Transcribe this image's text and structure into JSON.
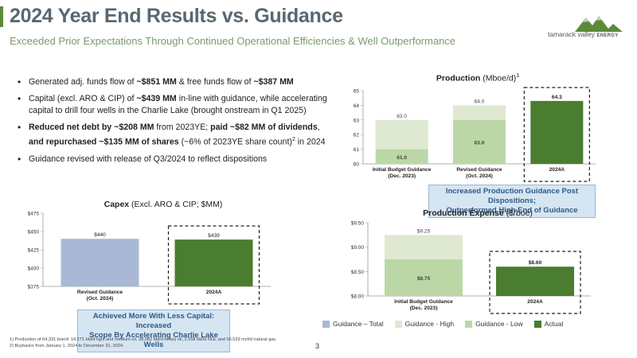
{
  "header": {
    "title": "2024 Year End Results vs. Guidance",
    "subtitle": "Exceeded Prior Expectations Through Continued Operational Efficiencies & Well Outperformance",
    "logo_text": "tamarack valley",
    "logo_text_small": "ENERGY"
  },
  "bullets": [
    {
      "parts": [
        {
          "t": "Generated adj. funds flow of ",
          "b": false
        },
        {
          "t": "~$851 MM",
          "b": true
        },
        {
          "t": " & free funds flow of ",
          "b": false
        },
        {
          "t": "~$387 MM",
          "b": true
        }
      ]
    },
    {
      "parts": [
        {
          "t": "Capital (excl. ARO & CIP) of ",
          "b": false
        },
        {
          "t": "~$439 MM",
          "b": true
        },
        {
          "t": " in-line with guidance, while accelerating capital to drill four wells in the Charlie Lake (brought onstream in Q1 2025)",
          "b": false
        }
      ]
    },
    {
      "parts": [
        {
          "t": "Reduced net debt by ~$208 MM",
          "b": true
        },
        {
          "t": " from 2023YE; ",
          "b": false
        },
        {
          "t": "paid ~$82 MM of dividends",
          "b": true
        },
        {
          "t": ", ",
          "b": false
        },
        {
          "t": "and repurchased ~$135 MM of shares",
          "b": true
        },
        {
          "t": " (~6% of 2023YE share count)",
          "b": false
        },
        {
          "t": "2",
          "sup": true
        },
        {
          "t": " in 2024",
          "b": false
        }
      ]
    },
    {
      "parts": [
        {
          "t": "Guidance revised with release of Q3/2024 to reflect dispositions",
          "b": false
        }
      ]
    }
  ],
  "capex": {
    "title_bold": "Capex",
    "title_rest": " (Excl. ARO & CIP; $MM)",
    "callout": [
      "Achieved More With Less Capital: Increased",
      "Scope By Accelerating Charlie Lake Wells"
    ]
  },
  "production": {
    "title_bold": "Production",
    "title_rest": " (Mboe/d)",
    "title_sup": "1",
    "callout": [
      "Increased Production Guidance Post Dispositions;",
      "Outperformed High End of Guidance"
    ]
  },
  "prodexp": {
    "title_bold": "Production Expense",
    "title_rest": " ($/boe)"
  },
  "chart_data": [
    {
      "id": "capex",
      "type": "bar",
      "categories": [
        [
          "Revised Guidance",
          "(Oct. 2024)"
        ],
        [
          "2024A"
        ]
      ],
      "values": [
        440,
        439
      ],
      "value_labels": [
        "$440",
        "$439"
      ],
      "series_kind": [
        "total",
        "actual"
      ],
      "ylim": [
        375,
        475
      ],
      "yticks": [
        375,
        400,
        425,
        450,
        475
      ],
      "ytick_labels": [
        "$375",
        "$400",
        "$425",
        "$450",
        "$475"
      ],
      "highlight_index": 1
    },
    {
      "id": "production",
      "type": "bar",
      "categories": [
        [
          "Initial Budget Guidance",
          "(Dec. 2023)"
        ],
        [
          "Revised Guidance",
          "(Oct. 2024)"
        ],
        [
          "2024A"
        ]
      ],
      "low": [
        61.0,
        63.0,
        null
      ],
      "high": [
        63.0,
        64.0,
        null
      ],
      "low_labels": [
        "61.0",
        "63.0",
        null
      ],
      "high_labels": [
        "63.0",
        "64.0",
        null
      ],
      "actual": [
        null,
        null,
        64.3
      ],
      "actual_labels": [
        null,
        null,
        "64.3"
      ],
      "ylim": [
        60,
        65
      ],
      "yticks": [
        60,
        61,
        62,
        63,
        64,
        65
      ],
      "ytick_labels": [
        "60",
        "61",
        "62",
        "63",
        "64",
        "65"
      ],
      "highlight_index": 2
    },
    {
      "id": "prodexp",
      "type": "bar",
      "categories": [
        [
          "Initial Budget Guidance",
          "(Dec. 2023)"
        ],
        [
          "2024A"
        ]
      ],
      "low": [
        8.75,
        null
      ],
      "high": [
        9.25,
        null
      ],
      "low_labels": [
        "$8.75",
        null
      ],
      "high_labels": [
        "$9.25",
        null
      ],
      "actual": [
        null,
        8.6
      ],
      "actual_labels": [
        null,
        "$8.60"
      ],
      "ylim": [
        8.0,
        9.5
      ],
      "yticks": [
        8.0,
        8.5,
        9.0,
        9.5
      ],
      "ytick_labels": [
        "$8.00",
        "$8.50",
        "$9.00",
        "$9.50"
      ],
      "highlight_index": 1
    }
  ],
  "legend": [
    {
      "label": "Guidance – Total",
      "color": "#a9b8d4"
    },
    {
      "label": "Guidance - High",
      "color": "#dfe9d2"
    },
    {
      "label": "Guidance - Low",
      "color": "#bcd7a6"
    },
    {
      "label": "Actual",
      "color": "#4a7d2f"
    }
  ],
  "colors": {
    "total": "#a9b8d4",
    "high": "#dfe9d2",
    "low": "#bcd7a6",
    "actual": "#4a7d2f",
    "accent": "#5a8a3a"
  },
  "footnotes": [
    "1)  Production of 64,331 boe/d: 14,271 bbl/d light and medium oil, 38,082 bbl/d heavy oil, 2,558 bbl/d NGL and 56,529 mcf/d natural gas.",
    "2)  Buybacks from January 1, 2024 to December 31, 2024."
  ],
  "page_number": "3"
}
